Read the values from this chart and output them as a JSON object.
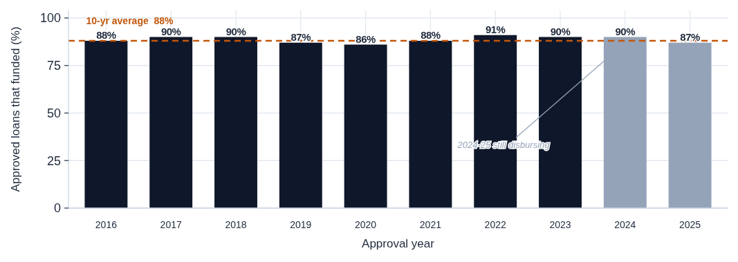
{
  "chart_data": {
    "type": "bar",
    "xlabel": "Approval year",
    "ylabel": "Approved loans that funded (%)",
    "categories": [
      "2016",
      "2017",
      "2018",
      "2019",
      "2020",
      "2021",
      "2022",
      "2023",
      "2024",
      "2025"
    ],
    "values": [
      88,
      90,
      90,
      87,
      86,
      88,
      91,
      90,
      90,
      87
    ],
    "colors": [
      "#0f172a",
      "#0f172a",
      "#0f172a",
      "#0f172a",
      "#0f172a",
      "#0f172a",
      "#0f172a",
      "#0f172a",
      "#94a3b8",
      "#94a3b8"
    ],
    "value_labels": [
      "88%",
      "90%",
      "90%",
      "87%",
      "86%",
      "88%",
      "91%",
      "90%",
      "90%",
      "87%"
    ],
    "ylim": [
      0,
      104
    ],
    "yticks": [
      0,
      25,
      50,
      75,
      100
    ],
    "grid": true,
    "ref_lines": [
      {
        "axis": "y",
        "value": 88,
        "label": "10-yr average  88%",
        "color": "#c2570c",
        "line_style": "dashed"
      }
    ],
    "annotations": [
      {
        "text": "2024-25 still disbursing",
        "x": "2024",
        "y": 87
      }
    ]
  }
}
